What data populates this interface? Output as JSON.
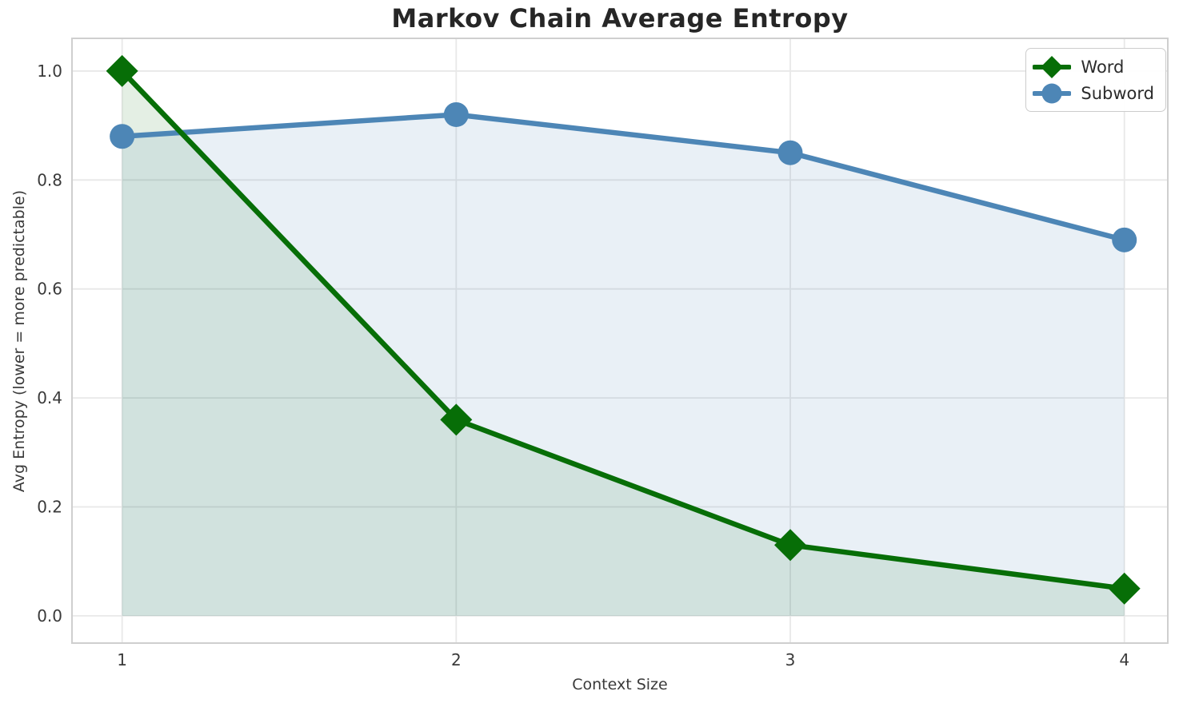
{
  "chart_data": {
    "type": "line",
    "title": "Markov Chain Average Entropy",
    "xlabel": "Context Size",
    "ylabel": "Avg Entropy (lower = more predictable)",
    "x": [
      1,
      2,
      3,
      4
    ],
    "series": [
      {
        "name": "Word",
        "values": [
          1.0,
          0.36,
          0.13,
          0.05
        ],
        "color": "#076e07",
        "marker": "diamond",
        "fill_to_zero": true,
        "fill_opacity": 0.11
      },
      {
        "name": "Subword",
        "values": [
          0.88,
          0.92,
          0.85,
          0.69
        ],
        "color": "#4d86b6",
        "marker": "circle",
        "fill_to_zero": true,
        "fill_opacity": 0.12
      }
    ],
    "xticks": [
      1,
      2,
      3,
      4
    ],
    "xtick_labels": [
      "1",
      "2",
      "3",
      "4"
    ],
    "yticks": [
      0.0,
      0.2,
      0.4,
      0.6,
      0.8,
      1.0
    ],
    "ytick_labels": [
      "0.0",
      "0.2",
      "0.4",
      "0.6",
      "0.8",
      "1.0"
    ],
    "xlim": [
      0.85,
      4.13
    ],
    "ylim": [
      -0.05,
      1.06
    ],
    "grid": true,
    "grid_color": "#e8e8e8",
    "spine_color": "#cfcfcf",
    "tick_color": "#3a3a3a",
    "legend_position": "upper right",
    "legend": [
      "Word",
      "Subword"
    ]
  }
}
